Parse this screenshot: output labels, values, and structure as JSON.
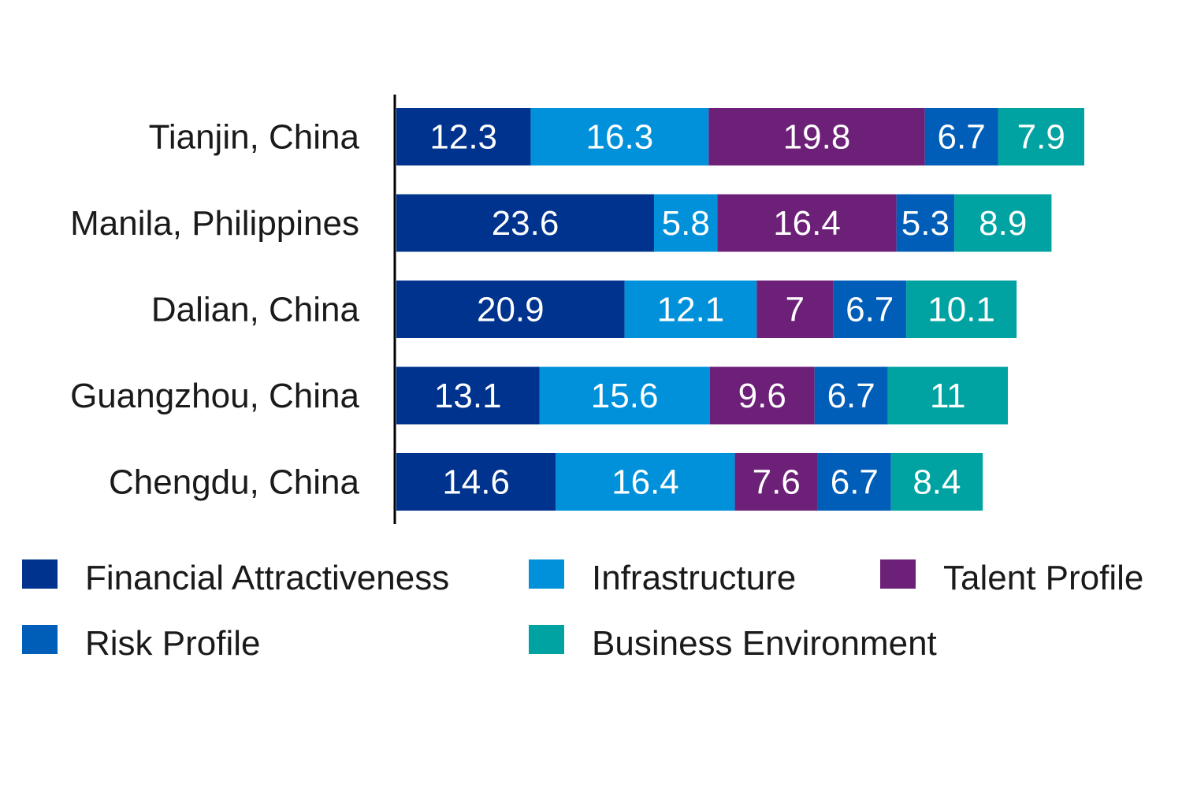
{
  "chart_data": {
    "type": "bar",
    "orientation": "horizontal",
    "stacked": true,
    "title": "",
    "xlabel": "",
    "ylabel": "",
    "categories": [
      "Tianjin, China",
      "Manila, Philippines",
      "Dalian, China",
      "Guangzhou, China",
      "Chengdu, China"
    ],
    "series": [
      {
        "name": "Financial Attractiveness",
        "color": "#00338D",
        "values": [
          12.3,
          23.6,
          20.9,
          13.1,
          14.6
        ]
      },
      {
        "name": "Infrastructure",
        "color": "#0091DA",
        "values": [
          16.3,
          5.8,
          12.1,
          15.6,
          16.4
        ]
      },
      {
        "name": "Talent Profile",
        "color": "#6D2077",
        "values": [
          19.8,
          16.4,
          7,
          9.6,
          7.6
        ]
      },
      {
        "name": "Risk Profile",
        "color": "#005EB8",
        "values": [
          6.7,
          5.3,
          6.7,
          6.7,
          6.7
        ]
      },
      {
        "name": "Business Environment",
        "color": "#00A3A1",
        "values": [
          7.9,
          8.9,
          10.1,
          11,
          8.4
        ]
      }
    ],
    "xlim": [
      0,
      63
    ],
    "grid": false,
    "legend": "bottom",
    "data_labels": true
  }
}
